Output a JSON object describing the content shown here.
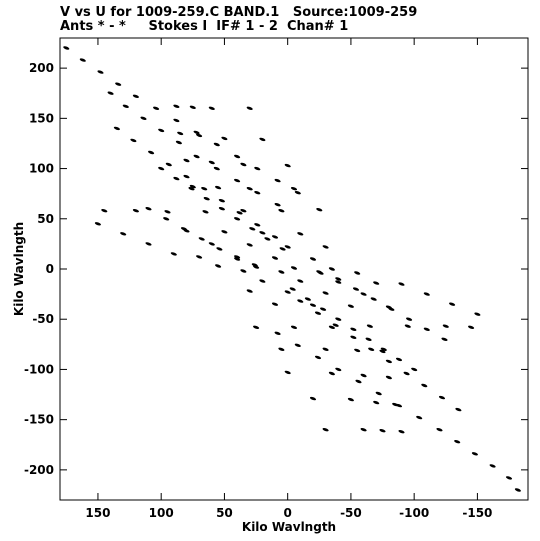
{
  "chart_data": {
    "type": "scatter",
    "title": "V vs U for 1009-259.C BAND.1   Source:1009-259",
    "subtitle": "Ants * - *     Stokes I  IF# 1 - 2  Chan# 1",
    "xlabel": "Kilo Wavlngth",
    "ylabel": "Kilo Wavlngth",
    "xlim": [
      180,
      -190
    ],
    "ylim": [
      -230,
      230
    ],
    "xticks": [
      150,
      100,
      50,
      0,
      -50,
      -100,
      -150
    ],
    "yticks": [
      200,
      150,
      100,
      50,
      0,
      -50,
      -100,
      -150,
      -200
    ],
    "grid": false,
    "marker_color": "#000000",
    "series": [
      {
        "values": [
          {
            "x": 175,
            "y": 220
          },
          {
            "x": 162,
            "y": 208
          },
          {
            "x": 148,
            "y": 196
          },
          {
            "x": 134,
            "y": 184
          },
          {
            "x": 120,
            "y": 172
          },
          {
            "x": 104,
            "y": 160
          },
          {
            "x": 88,
            "y": 148
          },
          {
            "x": 72,
            "y": 136
          },
          {
            "x": 56,
            "y": 124
          },
          {
            "x": 40,
            "y": 112
          },
          {
            "x": 24,
            "y": 100
          },
          {
            "x": 8,
            "y": 88
          },
          {
            "x": -8,
            "y": 76
          },
          {
            "x": 140,
            "y": 175
          },
          {
            "x": 128,
            "y": 162
          },
          {
            "x": 114,
            "y": 150
          },
          {
            "x": 100,
            "y": 138
          },
          {
            "x": 86,
            "y": 126
          },
          {
            "x": 72,
            "y": 112
          },
          {
            "x": 56,
            "y": 100
          },
          {
            "x": 40,
            "y": 88
          },
          {
            "x": 24,
            "y": 76
          },
          {
            "x": 8,
            "y": 64
          },
          {
            "x": 135,
            "y": 140
          },
          {
            "x": 122,
            "y": 128
          },
          {
            "x": 108,
            "y": 116
          },
          {
            "x": 94,
            "y": 104
          },
          {
            "x": 80,
            "y": 92
          },
          {
            "x": 66,
            "y": 80
          },
          {
            "x": 52,
            "y": 68
          },
          {
            "x": 38,
            "y": 56
          },
          {
            "x": 24,
            "y": 44
          },
          {
            "x": 10,
            "y": 32
          },
          {
            "x": 100,
            "y": 100
          },
          {
            "x": 88,
            "y": 90
          },
          {
            "x": 76,
            "y": 80
          },
          {
            "x": 64,
            "y": 70
          },
          {
            "x": 52,
            "y": 60
          },
          {
            "x": 40,
            "y": 50
          },
          {
            "x": 28,
            "y": 40
          },
          {
            "x": 16,
            "y": 30
          },
          {
            "x": 4,
            "y": 20
          },
          {
            "x": 110,
            "y": 60
          },
          {
            "x": 96,
            "y": 50
          },
          {
            "x": 82,
            "y": 40
          },
          {
            "x": 68,
            "y": 30
          },
          {
            "x": 54,
            "y": 20
          },
          {
            "x": 40,
            "y": 10
          },
          {
            "x": 26,
            "y": 4
          },
          {
            "x": 88,
            "y": 162
          },
          {
            "x": 75,
            "y": 161
          },
          {
            "x": 60,
            "y": 160
          },
          {
            "x": 30,
            "y": 160
          },
          {
            "x": 85,
            "y": 135
          },
          {
            "x": 70,
            "y": 133
          },
          {
            "x": 50,
            "y": 130
          },
          {
            "x": 20,
            "y": 129
          },
          {
            "x": 80,
            "y": 108
          },
          {
            "x": 60,
            "y": 106
          },
          {
            "x": 35,
            "y": 104
          },
          {
            "x": 0,
            "y": 103
          },
          {
            "x": 75,
            "y": 82
          },
          {
            "x": 55,
            "y": 81
          },
          {
            "x": 30,
            "y": 80
          },
          {
            "x": -5,
            "y": 80
          },
          {
            "x": 145,
            "y": 58
          },
          {
            "x": 120,
            "y": 58
          },
          {
            "x": 95,
            "y": 57
          },
          {
            "x": 65,
            "y": 57
          },
          {
            "x": 35,
            "y": 58
          },
          {
            "x": 5,
            "y": 58
          },
          {
            "x": -25,
            "y": 59
          },
          {
            "x": 80,
            "y": 38
          },
          {
            "x": 50,
            "y": 37
          },
          {
            "x": 20,
            "y": 36
          },
          {
            "x": -10,
            "y": 35
          },
          {
            "x": 60,
            "y": 25
          },
          {
            "x": 30,
            "y": 24
          },
          {
            "x": 0,
            "y": 22
          },
          {
            "x": -30,
            "y": 22
          },
          {
            "x": 70,
            "y": 12
          },
          {
            "x": 40,
            "y": 12
          },
          {
            "x": 10,
            "y": 11
          },
          {
            "x": -20,
            "y": 10
          },
          {
            "x": 55,
            "y": 3
          },
          {
            "x": 25,
            "y": 2
          },
          {
            "x": -5,
            "y": 1
          },
          {
            "x": -35,
            "y": 0
          },
          {
            "x": 35,
            "y": -2
          },
          {
            "x": 5,
            "y": -3
          },
          {
            "x": -25,
            "y": -3
          },
          {
            "x": -55,
            "y": -4
          },
          {
            "x": 20,
            "y": -12
          },
          {
            "x": -10,
            "y": -12
          },
          {
            "x": -40,
            "y": -13
          },
          {
            "x": -70,
            "y": -14
          },
          {
            "x": 30,
            "y": -22
          },
          {
            "x": 0,
            "y": -23
          },
          {
            "x": -30,
            "y": -24
          },
          {
            "x": -60,
            "y": -25
          },
          {
            "x": 10,
            "y": -35
          },
          {
            "x": -20,
            "y": -36
          },
          {
            "x": -50,
            "y": -37
          },
          {
            "x": -80,
            "y": -38
          },
          {
            "x": 25,
            "y": -58
          },
          {
            "x": -5,
            "y": -58
          },
          {
            "x": -35,
            "y": -58
          },
          {
            "x": -65,
            "y": -57
          },
          {
            "x": -95,
            "y": -57
          },
          {
            "x": -125,
            "y": -57
          },
          {
            "x": -145,
            "y": -58
          },
          {
            "x": 5,
            "y": -80
          },
          {
            "x": -30,
            "y": -80
          },
          {
            "x": -55,
            "y": -81
          },
          {
            "x": -75,
            "y": -82
          },
          {
            "x": 0,
            "y": -103
          },
          {
            "x": -35,
            "y": -104
          },
          {
            "x": -60,
            "y": -106
          },
          {
            "x": -80,
            "y": -108
          },
          {
            "x": -20,
            "y": -129
          },
          {
            "x": -50,
            "y": -130
          },
          {
            "x": -70,
            "y": -133
          },
          {
            "x": -85,
            "y": -135
          },
          {
            "x": -30,
            "y": -160
          },
          {
            "x": -60,
            "y": -160
          },
          {
            "x": -75,
            "y": -161
          },
          {
            "x": -90,
            "y": -162
          },
          {
            "x": 8,
            "y": -64
          },
          {
            "x": -8,
            "y": -76
          },
          {
            "x": -24,
            "y": -88
          },
          {
            "x": -40,
            "y": -100
          },
          {
            "x": -56,
            "y": -112
          },
          {
            "x": -72,
            "y": -124
          },
          {
            "x": -88,
            "y": -136
          },
          {
            "x": -104,
            "y": -148
          },
          {
            "x": -120,
            "y": -160
          },
          {
            "x": -134,
            "y": -172
          },
          {
            "x": -148,
            "y": -184
          },
          {
            "x": -162,
            "y": -196
          },
          {
            "x": -175,
            "y": -208
          },
          {
            "x": -182,
            "y": -220
          },
          {
            "x": -10,
            "y": -32
          },
          {
            "x": -24,
            "y": -44
          },
          {
            "x": -38,
            "y": -56
          },
          {
            "x": -52,
            "y": -68
          },
          {
            "x": -66,
            "y": -80
          },
          {
            "x": -80,
            "y": -92
          },
          {
            "x": -94,
            "y": -104
          },
          {
            "x": -108,
            "y": -116
          },
          {
            "x": -122,
            "y": -128
          },
          {
            "x": -135,
            "y": -140
          },
          {
            "x": -4,
            "y": -20
          },
          {
            "x": -16,
            "y": -30
          },
          {
            "x": -28,
            "y": -40
          },
          {
            "x": -40,
            "y": -50
          },
          {
            "x": -52,
            "y": -60
          },
          {
            "x": -64,
            "y": -70
          },
          {
            "x": -76,
            "y": -80
          },
          {
            "x": -88,
            "y": -90
          },
          {
            "x": -100,
            "y": -100
          },
          {
            "x": -26,
            "y": -4
          },
          {
            "x": -40,
            "y": -10
          },
          {
            "x": -54,
            "y": -20
          },
          {
            "x": -68,
            "y": -30
          },
          {
            "x": -82,
            "y": -40
          },
          {
            "x": -96,
            "y": -50
          },
          {
            "x": -110,
            "y": -60
          },
          {
            "x": -124,
            "y": -70
          },
          {
            "x": -150,
            "y": -45
          },
          {
            "x": -130,
            "y": -35
          },
          {
            "x": -110,
            "y": -25
          },
          {
            "x": -90,
            "y": -15
          },
          {
            "x": 150,
            "y": 45
          },
          {
            "x": 130,
            "y": 35
          },
          {
            "x": 110,
            "y": 25
          },
          {
            "x": 90,
            "y": 15
          }
        ]
      }
    ]
  }
}
